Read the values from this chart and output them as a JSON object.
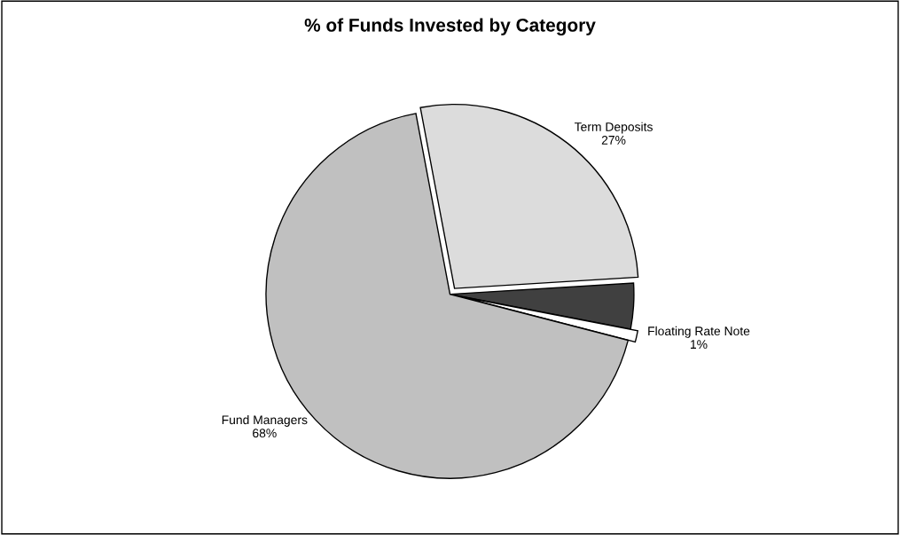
{
  "chart_data": {
    "type": "pie",
    "title": "% of Funds Invested by Category",
    "categories": [
      "Term Deposits",
      null,
      "Floating Rate Note",
      "Fund Managers"
    ],
    "values": [
      27,
      4,
      1,
      68
    ],
    "value_labels": [
      "27%",
      null,
      "1%",
      "68%"
    ],
    "colors": [
      "#dcdcdc",
      "#404040",
      "#ffffff",
      "#c0c0c0"
    ],
    "legend": false
  }
}
